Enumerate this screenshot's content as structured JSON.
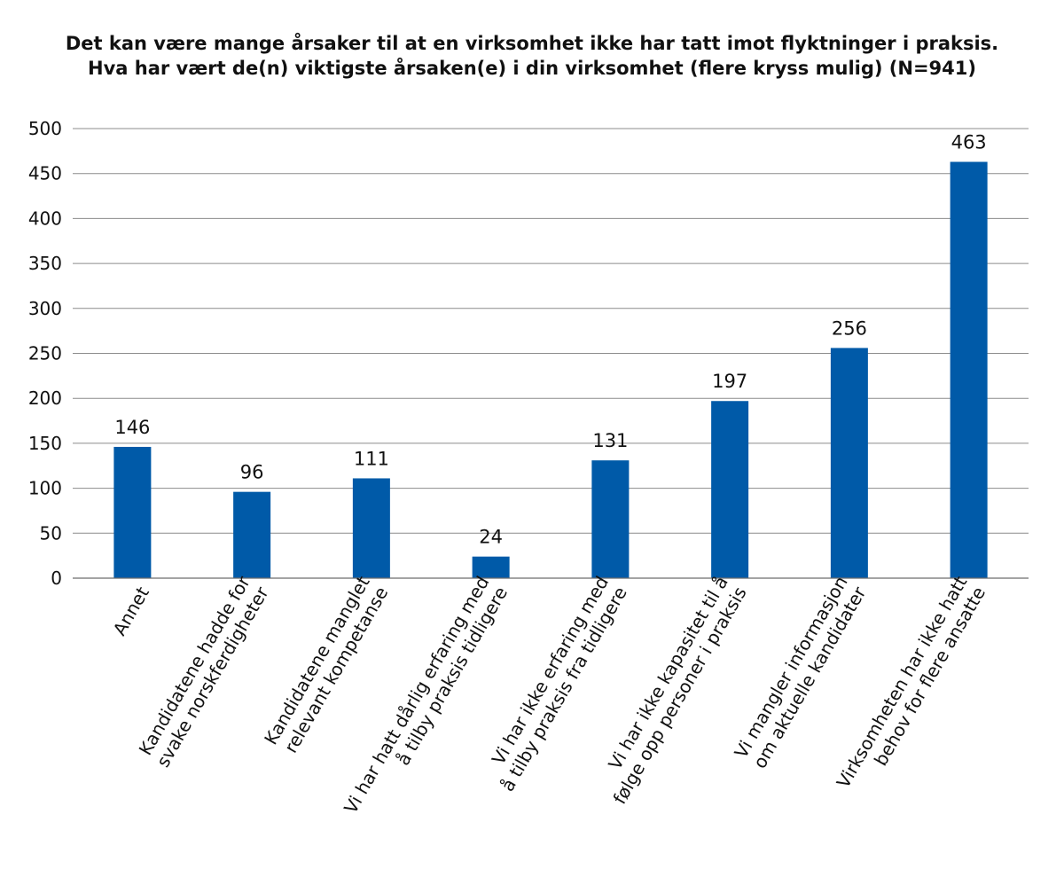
{
  "chart_data": {
    "type": "bar",
    "title": [
      "Det kan være mange årsaker til at en virksomhet ikke har tatt imot flyktninger i praksis.",
      "Hva har vært de(n) viktigste årsaken(e) i din virksomhet (flere kryss mulig) (N=941)"
    ],
    "categories": [
      [
        "Annet"
      ],
      [
        "Kandidatene hadde for",
        "svake norskferdigheter"
      ],
      [
        "Kandidatene manglet",
        "relevant kompetanse"
      ],
      [
        "Vi har hatt dårlig erfaring med",
        "å tilby praksis tidligere"
      ],
      [
        "Vi har ikke erfaring med",
        "å tilby praksis fra tidligere"
      ],
      [
        "Vi har ikke kapasitet til å",
        "følge opp personer i praksis"
      ],
      [
        "Vi mangler informasjon",
        "om aktuelle kandidater"
      ],
      [
        "Virksomheten har ikke hatt",
        "behov for flere ansatte"
      ]
    ],
    "values": [
      146,
      96,
      111,
      24,
      131,
      197,
      256,
      463
    ],
    "data_labels": [
      "146",
      "96",
      "111",
      "24",
      "131",
      "197",
      "256",
      "463"
    ],
    "y_ticks": [
      0,
      50,
      100,
      150,
      200,
      250,
      300,
      350,
      400,
      450,
      500
    ],
    "ylim": [
      0,
      500
    ],
    "xlabel": "",
    "ylabel": "",
    "grid": true,
    "legend": "none",
    "bar_color": "#005aa8"
  }
}
